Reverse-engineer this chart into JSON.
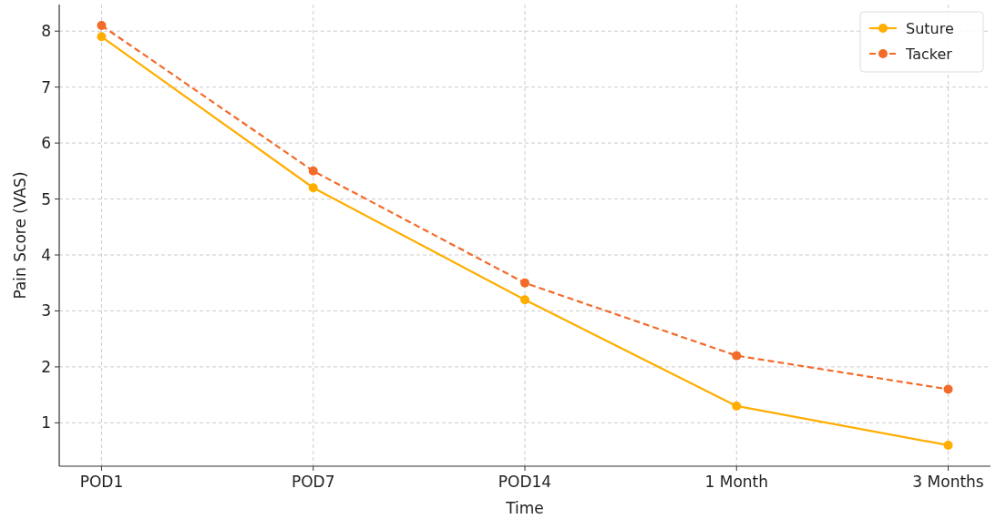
{
  "chart_data": {
    "type": "line",
    "xlabel": "Time",
    "ylabel": "Pain Score (VAS)",
    "categories": [
      "POD1",
      "POD7",
      "POD14",
      "1 Month",
      "3 Months"
    ],
    "series": [
      {
        "name": "Suture",
        "color": "#ffae00",
        "values": [
          7.9,
          5.2,
          3.2,
          1.3,
          0.6
        ],
        "line_style": "solid"
      },
      {
        "name": "Tacker",
        "color": "#f26b2a",
        "values": [
          8.1,
          5.5,
          3.5,
          2.2,
          1.6
        ],
        "line_style": "dashed"
      }
    ],
    "ylim": [
      0.225,
      8.475
    ],
    "yticks": [
      1,
      2,
      3,
      4,
      5,
      6,
      7,
      8
    ],
    "grid": true,
    "legend": "top right",
    "marker": "circle"
  }
}
